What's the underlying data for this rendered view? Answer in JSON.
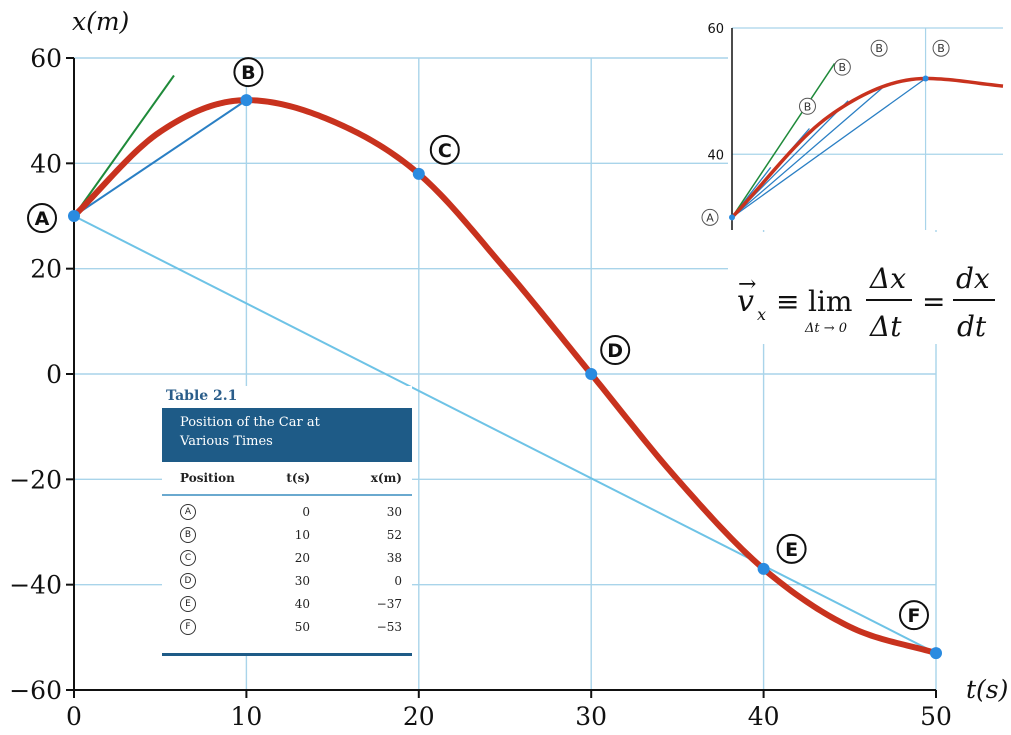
{
  "chart_data": [
    {
      "type": "line",
      "title": "",
      "xlabel": "t(s)",
      "ylabel": "x(m)",
      "xlim": [
        0,
        50
      ],
      "ylim": [
        -60,
        60
      ],
      "x_ticks": [
        "0",
        "10",
        "20",
        "30",
        "40",
        "50"
      ],
      "y_ticks": [
        "60",
        "40",
        "20",
        "0",
        "−20",
        "−40",
        "−60"
      ],
      "grid": true,
      "series": [
        {
          "color": "#c8321e",
          "x": [
            0,
            5,
            10,
            15,
            20,
            25,
            30,
            35,
            40,
            45,
            50
          ],
          "y": [
            30,
            46,
            52,
            48,
            38,
            20,
            0,
            -20,
            -37,
            -48,
            -53
          ]
        }
      ],
      "points": [
        {
          "label": "A",
          "t": 0,
          "x": 30
        },
        {
          "label": "B",
          "t": 10,
          "x": 52
        },
        {
          "label": "C",
          "t": 20,
          "x": 38
        },
        {
          "label": "D",
          "t": 30,
          "x": 0
        },
        {
          "label": "E",
          "t": 40,
          "x": -37
        },
        {
          "label": "F",
          "t": 50,
          "x": -53
        }
      ],
      "secant_lines": [
        {
          "from": "A",
          "to": "B",
          "color": "#2a7fc4"
        },
        {
          "from": "A",
          "to": "F",
          "color": "#6ec3e6"
        }
      ],
      "tangent_line": {
        "at": "A",
        "color": "#1f8a3a",
        "slope": 4.6,
        "t_end": 5.8
      }
    },
    {
      "type": "line",
      "title": "",
      "ylim": [
        28,
        60
      ],
      "y_ticks": [
        "60",
        "40"
      ],
      "grid": true,
      "start_label": "A",
      "end_label": "B",
      "secant_labels": [
        "B",
        "B",
        "B",
        "B"
      ]
    }
  ],
  "formula": {
    "lhs": "v",
    "lhs_sub": "x",
    "equiv": "≡",
    "lim": "lim",
    "lim_sub": "Δt → 0",
    "frac1_num": "Δx",
    "frac1_den": "Δt",
    "equals": "=",
    "frac2_num": "dx",
    "frac2_den": "dt"
  },
  "table": {
    "caption": "Table 2.1",
    "title_line1": "Position of the Car at",
    "title_line2": "Various Times",
    "col_position": "Position",
    "col_t": "t(s)",
    "col_x": "x(m)",
    "rows": [
      {
        "pos": "A",
        "t": "0",
        "x": "30"
      },
      {
        "pos": "B",
        "t": "10",
        "x": "52"
      },
      {
        "pos": "C",
        "t": "20",
        "x": "38"
      },
      {
        "pos": "D",
        "t": "30",
        "x": "0"
      },
      {
        "pos": "E",
        "t": "40",
        "x": "−37"
      },
      {
        "pos": "F",
        "t": "50",
        "x": "−53"
      }
    ]
  }
}
